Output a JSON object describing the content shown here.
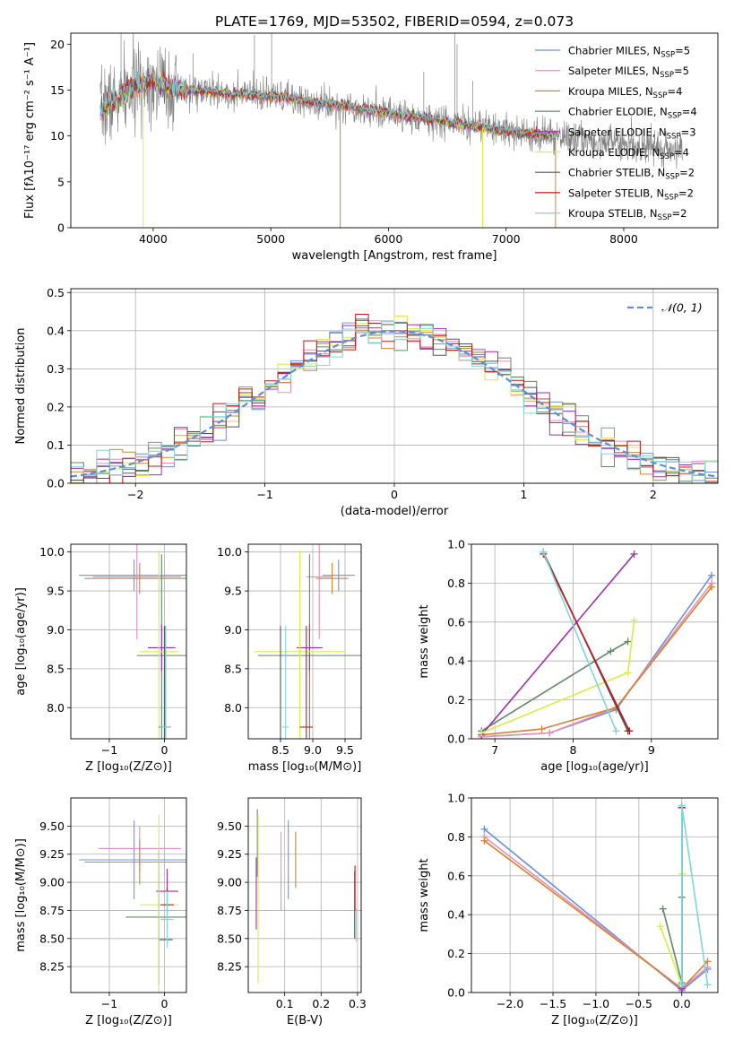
{
  "figure": {
    "title": "PLATE=1769, MJD=53502, FIBERID=0594, z=0.073"
  },
  "models": [
    {
      "name": "Chabrier MILES",
      "nssp": "5",
      "color": "#6f8fdf"
    },
    {
      "name": "Salpeter MILES",
      "nssp": "5",
      "color": "#e98fb7"
    },
    {
      "name": "Kroupa MILES",
      "nssp": "4",
      "color": "#d7832e"
    },
    {
      "name": "Chabrier ELODIE",
      "nssp": "4",
      "color": "#5f8a63"
    },
    {
      "name": "Salpeter ELODIE",
      "nssp": "3",
      "color": "#a12fb2"
    },
    {
      "name": "Kroupa ELODIE",
      "nssp": "4",
      "color": "#d6ee46"
    },
    {
      "name": "Chabrier STELIB",
      "nssp": "2",
      "color": "#555555"
    },
    {
      "name": "Salpeter STELIB",
      "nssp": "2",
      "color": "#c0181d"
    },
    {
      "name": "Kroupa STELIB",
      "nssp": "2",
      "color": "#7fd6d9"
    }
  ],
  "chart_data": [
    {
      "id": "spectrum",
      "type": "line",
      "xlabel": "wavelength [Angstrom, rest frame]",
      "ylabel": "Flux [fλ10⁻¹⁷ erg cm⁻² s⁻¹ A⁻¹]",
      "xlim": [
        3300,
        8800
      ],
      "ylim": [
        0,
        21.2
      ],
      "xticks": [
        4000,
        5000,
        6000,
        7000,
        8000
      ],
      "yticks": [
        0,
        5,
        10,
        15,
        20
      ],
      "grid": false,
      "legend": "top-right",
      "continuum": {
        "x": [
          3550,
          3600,
          3700,
          3800,
          3900,
          4000,
          4100,
          4200,
          4300,
          4500,
          4700,
          5000,
          5500,
          6000,
          6500,
          7000,
          7500,
          8000,
          8500,
          8700
        ],
        "y": [
          12.5,
          13.5,
          14.0,
          15.0,
          15.8,
          16.0,
          15.5,
          15.0,
          15.0,
          14.8,
          14.5,
          14.3,
          13.5,
          12.5,
          11.5,
          10.5,
          9.8,
          9.2,
          8.5,
          8.2
        ]
      },
      "observed_color": "#808080",
      "observed_extent": [
        3550,
        8500
      ],
      "model_extent": [
        3550,
        7420
      ]
    },
    {
      "id": "residuals",
      "type": "step",
      "xlabel": "(data-model)/error",
      "ylabel": "Normed distribution",
      "xlim": [
        -2.5,
        2.5
      ],
      "ylim": [
        0,
        0.51
      ],
      "xticks": [
        -2,
        -1,
        0,
        1,
        2
      ],
      "yticks": [
        0,
        0.1,
        0.2,
        0.3,
        0.4,
        0.5
      ],
      "grid": true,
      "legend": "top-right",
      "reference_label": "𝒩(0, 1)",
      "reference_color": "#5b8fd6",
      "bin_width": 0.1
    },
    {
      "id": "age-vs-z",
      "type": "scatter",
      "xlabel": "Z [log₁₀(Z/Z⊙)]",
      "ylabel": "age  [log₁₀(age/yr)]",
      "xlim": [
        -1.7,
        0.4
      ],
      "ylim": [
        7.6,
        10.1
      ],
      "xticks": [
        -1,
        0
      ],
      "yticks": [
        8.0,
        8.5,
        9.0,
        9.5,
        10.0
      ],
      "grid": true,
      "points": [
        {
          "model": 0,
          "x": -0.55,
          "xerr": 1.0,
          "y": 9.7,
          "yerr": 0.2
        },
        {
          "model": 1,
          "x": -0.5,
          "xerr": 0.8,
          "y": 9.68,
          "yerr": 0.8
        },
        {
          "model": 2,
          "x": -0.45,
          "xerr": 1.0,
          "y": 9.66,
          "yerr": 0.2
        },
        {
          "model": 3,
          "x": -0.05,
          "xerr": 0.45,
          "y": 8.67,
          "yerr": 1.3
        },
        {
          "model": 4,
          "x": -0.05,
          "xerr": 0.25,
          "y": 8.77,
          "yerr": 0.3
        },
        {
          "model": 5,
          "x": -0.1,
          "xerr": 0.35,
          "y": 8.72,
          "yerr": 1.3
        },
        {
          "model": 6,
          "x": 0.0,
          "xerr": 0.1,
          "y": 7.75,
          "yerr": 1.3
        },
        {
          "model": 7,
          "x": 0.02,
          "xerr": 0.1,
          "y": 7.75,
          "yerr": 1.3
        },
        {
          "model": 8,
          "x": 0.02,
          "xerr": 0.1,
          "y": 7.75,
          "yerr": 1.3
        }
      ]
    },
    {
      "id": "age-vs-mass",
      "type": "scatter",
      "xlabel": "mass [log₁₀(M/M⊙)]",
      "ylabel": "",
      "xlim": [
        8.0,
        9.75
      ],
      "ylim": [
        7.6,
        10.1
      ],
      "xticks": [
        8.5,
        9.0,
        9.5
      ],
      "yticks": [
        8.0,
        8.5,
        9.0,
        9.5,
        10.0
      ],
      "grid": true,
      "points": [
        {
          "model": 0,
          "x": 9.4,
          "xerr": 0.25,
          "y": 9.7,
          "yerr": 0.2
        },
        {
          "model": 1,
          "x": 9.1,
          "xerr": 0.2,
          "y": 9.68,
          "yerr": 0.8
        },
        {
          "model": 2,
          "x": 9.3,
          "xerr": 0.25,
          "y": 9.66,
          "yerr": 0.2
        },
        {
          "model": 3,
          "x": 8.95,
          "xerr": 0.8,
          "y": 8.67,
          "yerr": 1.3
        },
        {
          "model": 4,
          "x": 8.95,
          "xerr": 0.2,
          "y": 8.77,
          "yerr": 0.3
        },
        {
          "model": 5,
          "x": 8.8,
          "xerr": 0.7,
          "y": 8.72,
          "yerr": 1.3
        },
        {
          "model": 6,
          "x": 8.5,
          "xerr": 0.0,
          "y": 7.75,
          "yerr": 1.3
        },
        {
          "model": 7,
          "x": 8.9,
          "xerr": 0.1,
          "y": 7.75,
          "yerr": 1.3
        },
        {
          "model": 8,
          "x": 8.58,
          "xerr": 0.05,
          "y": 7.75,
          "yerr": 1.3
        }
      ]
    },
    {
      "id": "weight-vs-age",
      "type": "line",
      "xlabel": "age  [log₁₀(age/yr)]",
      "ylabel": "mass weight",
      "xlim": [
        6.7,
        9.85
      ],
      "ylim": [
        0,
        1
      ],
      "xticks": [
        7,
        8,
        9
      ],
      "yticks": [
        0,
        0.2,
        0.4,
        0.6,
        0.8,
        1.0
      ],
      "grid": true,
      "series": [
        {
          "model": 0,
          "x": [
            6.83,
            7.7,
            8.55,
            9.77
          ],
          "y": [
            0.01,
            0.03,
            0.15,
            0.84
          ]
        },
        {
          "model": 1,
          "x": [
            6.83,
            7.7,
            8.55,
            9.77
          ],
          "y": [
            0.01,
            0.03,
            0.16,
            0.8
          ]
        },
        {
          "model": 2,
          "x": [
            6.83,
            7.6,
            8.55,
            9.77
          ],
          "y": [
            0.02,
            0.05,
            0.16,
            0.78
          ]
        },
        {
          "model": 3,
          "x": [
            6.83,
            8.48,
            8.7
          ],
          "y": [
            0.04,
            0.45,
            0.5
          ]
        },
        {
          "model": 4,
          "x": [
            6.83,
            8.78
          ],
          "y": [
            0.02,
            0.95
          ]
        },
        {
          "model": 5,
          "x": [
            6.83,
            8.7,
            8.78
          ],
          "y": [
            0.03,
            0.34,
            0.61
          ]
        },
        {
          "model": 6,
          "x": [
            7.62,
            8.7
          ],
          "y": [
            0.96,
            0.04
          ]
        },
        {
          "model": 7,
          "x": [
            7.62,
            8.72
          ],
          "y": [
            0.95,
            0.04
          ]
        },
        {
          "model": 8,
          "x": [
            7.62,
            8.55
          ],
          "y": [
            0.96,
            0.04
          ]
        }
      ]
    },
    {
      "id": "mass-vs-z",
      "type": "scatter",
      "xlabel": "Z [log₁₀(Z/Z⊙)]",
      "ylabel": "mass [log₁₀(M/M⊙)]",
      "xlim": [
        -1.7,
        0.4
      ],
      "ylim": [
        8.02,
        9.75
      ],
      "xticks": [
        -1,
        0
      ],
      "yticks": [
        8.25,
        8.5,
        8.75,
        9.0,
        9.25,
        9.5
      ],
      "grid": true,
      "points": [
        {
          "model": 0,
          "x": -0.55,
          "xerr": 1.0,
          "y": 9.2,
          "yerr": 0.35
        },
        {
          "model": 1,
          "x": -0.45,
          "xerr": 0.75,
          "y": 9.3,
          "yerr": 0.2
        },
        {
          "model": 2,
          "x": -0.45,
          "xerr": 1.0,
          "y": 9.18,
          "yerr": 0.2
        },
        {
          "model": 3,
          "x": -0.1,
          "xerr": 0.6,
          "y": 8.69,
          "yerr": 0.6
        },
        {
          "model": 4,
          "x": 0.05,
          "xerr": 0.2,
          "y": 8.92,
          "yerr": 0.2
        },
        {
          "model": 5,
          "x": -0.1,
          "xerr": 0.35,
          "y": 8.8,
          "yerr": 0.8
        },
        {
          "model": 6,
          "x": 0.03,
          "xerr": 0.12,
          "y": 8.49,
          "yerr": 0.0
        },
        {
          "model": 7,
          "x": 0.05,
          "xerr": 0.12,
          "y": 8.8,
          "yerr": 0.15
        },
        {
          "model": 8,
          "x": 0.05,
          "xerr": 0.12,
          "y": 8.67,
          "yerr": 0.25
        }
      ]
    },
    {
      "id": "mass-vs-ebv",
      "type": "scatter",
      "xlabel": "E(B-V)",
      "ylabel": "",
      "xlim": [
        0.0,
        0.31
      ],
      "ylim": [
        8.02,
        9.75
      ],
      "xticks": [
        0.1,
        0.2,
        0.3
      ],
      "yticks": [
        8.25,
        8.5,
        8.75,
        9.0,
        9.25,
        9.5
      ],
      "grid": true,
      "points": [
        {
          "model": 0,
          "x": 0.11,
          "xerr": 0.0,
          "y": 9.2,
          "yerr": 0.35
        },
        {
          "model": 1,
          "x": 0.09,
          "xerr": 0.0,
          "y": 9.1,
          "yerr": 0.35
        },
        {
          "model": 2,
          "x": 0.13,
          "xerr": 0.0,
          "y": 9.2,
          "yerr": 0.25
        },
        {
          "model": 3,
          "x": 0.025,
          "xerr": 0.0,
          "y": 9.35,
          "yerr": 0.3
        },
        {
          "model": 4,
          "x": 0.022,
          "xerr": 0.0,
          "y": 8.9,
          "yerr": 0.32
        },
        {
          "model": 5,
          "x": 0.027,
          "xerr": 0.0,
          "y": 8.85,
          "yerr": 0.75
        },
        {
          "model": 6,
          "x": 0.292,
          "xerr": 0.0,
          "y": 8.8,
          "yerr": 0.3
        },
        {
          "model": 7,
          "x": 0.293,
          "xerr": 0.0,
          "y": 8.95,
          "yerr": 0.2
        },
        {
          "model": 8,
          "x": 0.296,
          "xerr": 0.0,
          "y": 8.62,
          "yerr": 0.15
        }
      ]
    },
    {
      "id": "weight-vs-z",
      "type": "line",
      "xlabel": "Z [log₁₀(Z/Z⊙)]",
      "ylabel": "mass weight",
      "xlim": [
        -2.45,
        0.42
      ],
      "ylim": [
        0,
        1
      ],
      "xticks": [
        -2.0,
        -1.5,
        -1.0,
        -0.5,
        0.0
      ],
      "yticks": [
        0,
        0.2,
        0.4,
        0.6,
        0.8,
        1.0
      ],
      "grid": true,
      "series": [
        {
          "model": 0,
          "x": [
            -2.3,
            0.0,
            0.3
          ],
          "y": [
            0.84,
            0.01,
            0.12
          ]
        },
        {
          "model": 1,
          "x": [
            -2.3,
            0.0,
            0.3
          ],
          "y": [
            0.8,
            0.02,
            0.13
          ]
        },
        {
          "model": 2,
          "x": [
            -2.3,
            0.0,
            0.3
          ],
          "y": [
            0.78,
            0.02,
            0.16
          ]
        },
        {
          "model": 3,
          "x": [
            -0.22,
            0.0,
            0.0
          ],
          "y": [
            0.43,
            0.05,
            0.49
          ]
        },
        {
          "model": 4,
          "x": [
            0.0,
            0.0
          ],
          "y": [
            0.02,
            0.95
          ]
        },
        {
          "model": 5,
          "x": [
            -0.25,
            0.0,
            0.0
          ],
          "y": [
            0.34,
            0.04,
            0.61
          ]
        },
        {
          "model": 6,
          "x": [
            0.0,
            0.0
          ],
          "y": [
            0.04,
            0.95
          ]
        },
        {
          "model": 7,
          "x": [
            0.0,
            0.0
          ],
          "y": [
            0.04,
            0.95
          ]
        },
        {
          "model": 8,
          "x": [
            0.0,
            0.0,
            0.3
          ],
          "y": [
            0.04,
            0.96,
            0.04
          ]
        }
      ]
    }
  ]
}
